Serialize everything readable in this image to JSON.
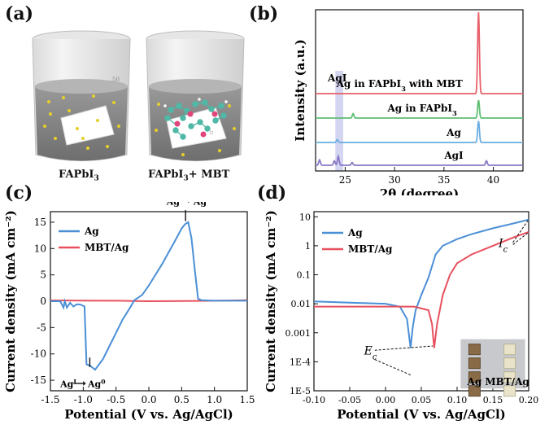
{
  "panels": {
    "a": "(a)",
    "b": "(b)",
    "c": "(c)",
    "d": "(d)"
  },
  "panel_a": {
    "left_caption": "FAPbI",
    "left_sub": "3",
    "right_caption_pre": "FAPbI",
    "right_sub": "3",
    "right_caption_post": "+ MBT",
    "beaker_mark": "50"
  },
  "chart_data": [
    {
      "type": "line",
      "panel": "b",
      "xlabel": "2θ (degree)",
      "ylabel": "Intensity (a.u.)",
      "xlim": [
        22,
        43
      ],
      "xticks": [
        25,
        30,
        35,
        40
      ],
      "highlight_label": "AgI",
      "highlight_range": [
        24.0,
        24.8
      ],
      "series": [
        {
          "name": "Ag in FAPbI3 with MBT",
          "color": "#e8606a",
          "peaks": [
            [
              38.5,
              1.0
            ]
          ]
        },
        {
          "name": "Ag in FAPbI3",
          "color": "#5cbf73",
          "peaks": [
            [
              38.5,
              0.25
            ],
            [
              25.8,
              0.06
            ]
          ]
        },
        {
          "name": "Ag",
          "color": "#6aaee0",
          "peaks": [
            [
              38.5,
              0.3
            ],
            [
              24.2,
              0.04
            ]
          ]
        },
        {
          "name": "AgI",
          "color": "#8a78c6",
          "peaks": [
            [
              22.4,
              0.12
            ],
            [
              23.9,
              0.1
            ],
            [
              24.3,
              0.2
            ],
            [
              25.7,
              0.06
            ],
            [
              39.3,
              0.1
            ]
          ]
        }
      ]
    },
    {
      "type": "line",
      "panel": "c",
      "xlabel": "Potential (V vs. Ag/AgCl)",
      "ylabel": "Current density (mA cm⁻²)",
      "xlim": [
        -1.5,
        1.5
      ],
      "ylim": [
        -17,
        17
      ],
      "xticks": [
        -1.5,
        -1.0,
        -0.5,
        0.0,
        0.5,
        1.0,
        1.5
      ],
      "xtick_labels": [
        "-1.5",
        "-1.0",
        "-0.5",
        "0.0",
        "0.5",
        "1.0",
        "1.5"
      ],
      "yticks": [
        -15,
        -10,
        -5,
        0,
        5,
        10,
        15
      ],
      "legend": [
        "Ag",
        "MBT/Ag"
      ],
      "annotations": {
        "oxidation_from": "Ag",
        "oxidation_from_sup": "0",
        "oxidation_to": "Ag",
        "oxidation_to_sup": "I",
        "reduction_from": "Ag",
        "reduction_from_sup": "I",
        "reduction_to": "Ag",
        "reduction_to_sup": "0"
      },
      "series": [
        {
          "name": "Ag",
          "color": "#4a8fd6",
          "x": [
            -1.5,
            -1.35,
            -1.3,
            -1.28,
            -1.25,
            -1.2,
            -1.15,
            -1.1,
            -1.05,
            -0.98,
            -0.95,
            -0.9,
            -0.82,
            -0.7,
            -0.6,
            -0.5,
            -0.4,
            -0.3,
            -0.22,
            -0.1,
            0.0,
            0.2,
            0.4,
            0.5,
            0.55,
            0.6,
            0.65,
            0.7,
            0.75,
            0.8,
            1.0,
            1.5
          ],
          "y": [
            0,
            0,
            -1.2,
            0,
            -1.2,
            -0.3,
            -1.0,
            -0.6,
            -0.6,
            -1.0,
            -12.0,
            -12.2,
            -13.0,
            -11.0,
            -8.5,
            -6.0,
            -3.5,
            -1.5,
            0.2,
            1.2,
            3.0,
            7.0,
            11.5,
            13.8,
            14.6,
            15.0,
            12.0,
            6.0,
            0.5,
            0.2,
            0.1,
            0.1
          ]
        },
        {
          "name": "MBT/Ag",
          "color": "#e8505e",
          "x": [
            -1.5,
            -1.0,
            -0.5,
            0.0,
            0.5,
            1.0,
            1.5
          ],
          "y": [
            0.15,
            0.12,
            0.1,
            0.0,
            0.05,
            0.1,
            0.2
          ]
        }
      ]
    },
    {
      "type": "line",
      "panel": "d",
      "xlabel": "Potential (V vs. Ag/AgCl)",
      "ylabel": "Current density (mA cm⁻²)",
      "xlim": [
        -0.1,
        0.2
      ],
      "yscale": "log",
      "ylim": [
        1e-05,
        15
      ],
      "xticks": [
        -0.1,
        -0.05,
        0.0,
        0.05,
        0.1,
        0.15,
        0.2
      ],
      "xtick_labels": [
        "-0.10",
        "-0.05",
        "0.00",
        "0.05",
        "0.10",
        "0.15",
        "0.20"
      ],
      "yticks": [
        1e-05,
        0.0001,
        0.001,
        0.01,
        0.1,
        1,
        10
      ],
      "ytick_labels": [
        "1E-5",
        "1E-4",
        "0.001",
        "0.01",
        "0.1",
        "1",
        "10"
      ],
      "legend": [
        "Ag",
        "MBT/Ag"
      ],
      "annotations": {
        "ec": "E",
        "ec_sub": "c",
        "ic": "I",
        "ic_sub": "c"
      },
      "inset_labels": [
        "Ag",
        "MBT/Ag"
      ],
      "series": [
        {
          "name": "Ag",
          "color": "#4a8fd6",
          "x": [
            -0.1,
            -0.05,
            0.0,
            0.02,
            0.03,
            0.035,
            0.038,
            0.042,
            0.05,
            0.06,
            0.07,
            0.08,
            0.1,
            0.12,
            0.15,
            0.18,
            0.2
          ],
          "y": [
            0.012,
            0.011,
            0.01,
            0.008,
            0.003,
            0.0003,
            0.0015,
            0.006,
            0.02,
            0.08,
            0.5,
            1.0,
            1.7,
            2.5,
            4.0,
            6.0,
            8.0
          ]
        },
        {
          "name": "MBT/Ag",
          "color": "#e8505e",
          "x": [
            -0.1,
            -0.05,
            0.0,
            0.04,
            0.06,
            0.065,
            0.068,
            0.072,
            0.08,
            0.09,
            0.1,
            0.12,
            0.15,
            0.18,
            0.2
          ],
          "y": [
            0.008,
            0.008,
            0.008,
            0.008,
            0.006,
            0.002,
            0.0003,
            0.002,
            0.02,
            0.1,
            0.25,
            0.5,
            1.0,
            2.0,
            3.0
          ]
        }
      ]
    }
  ]
}
